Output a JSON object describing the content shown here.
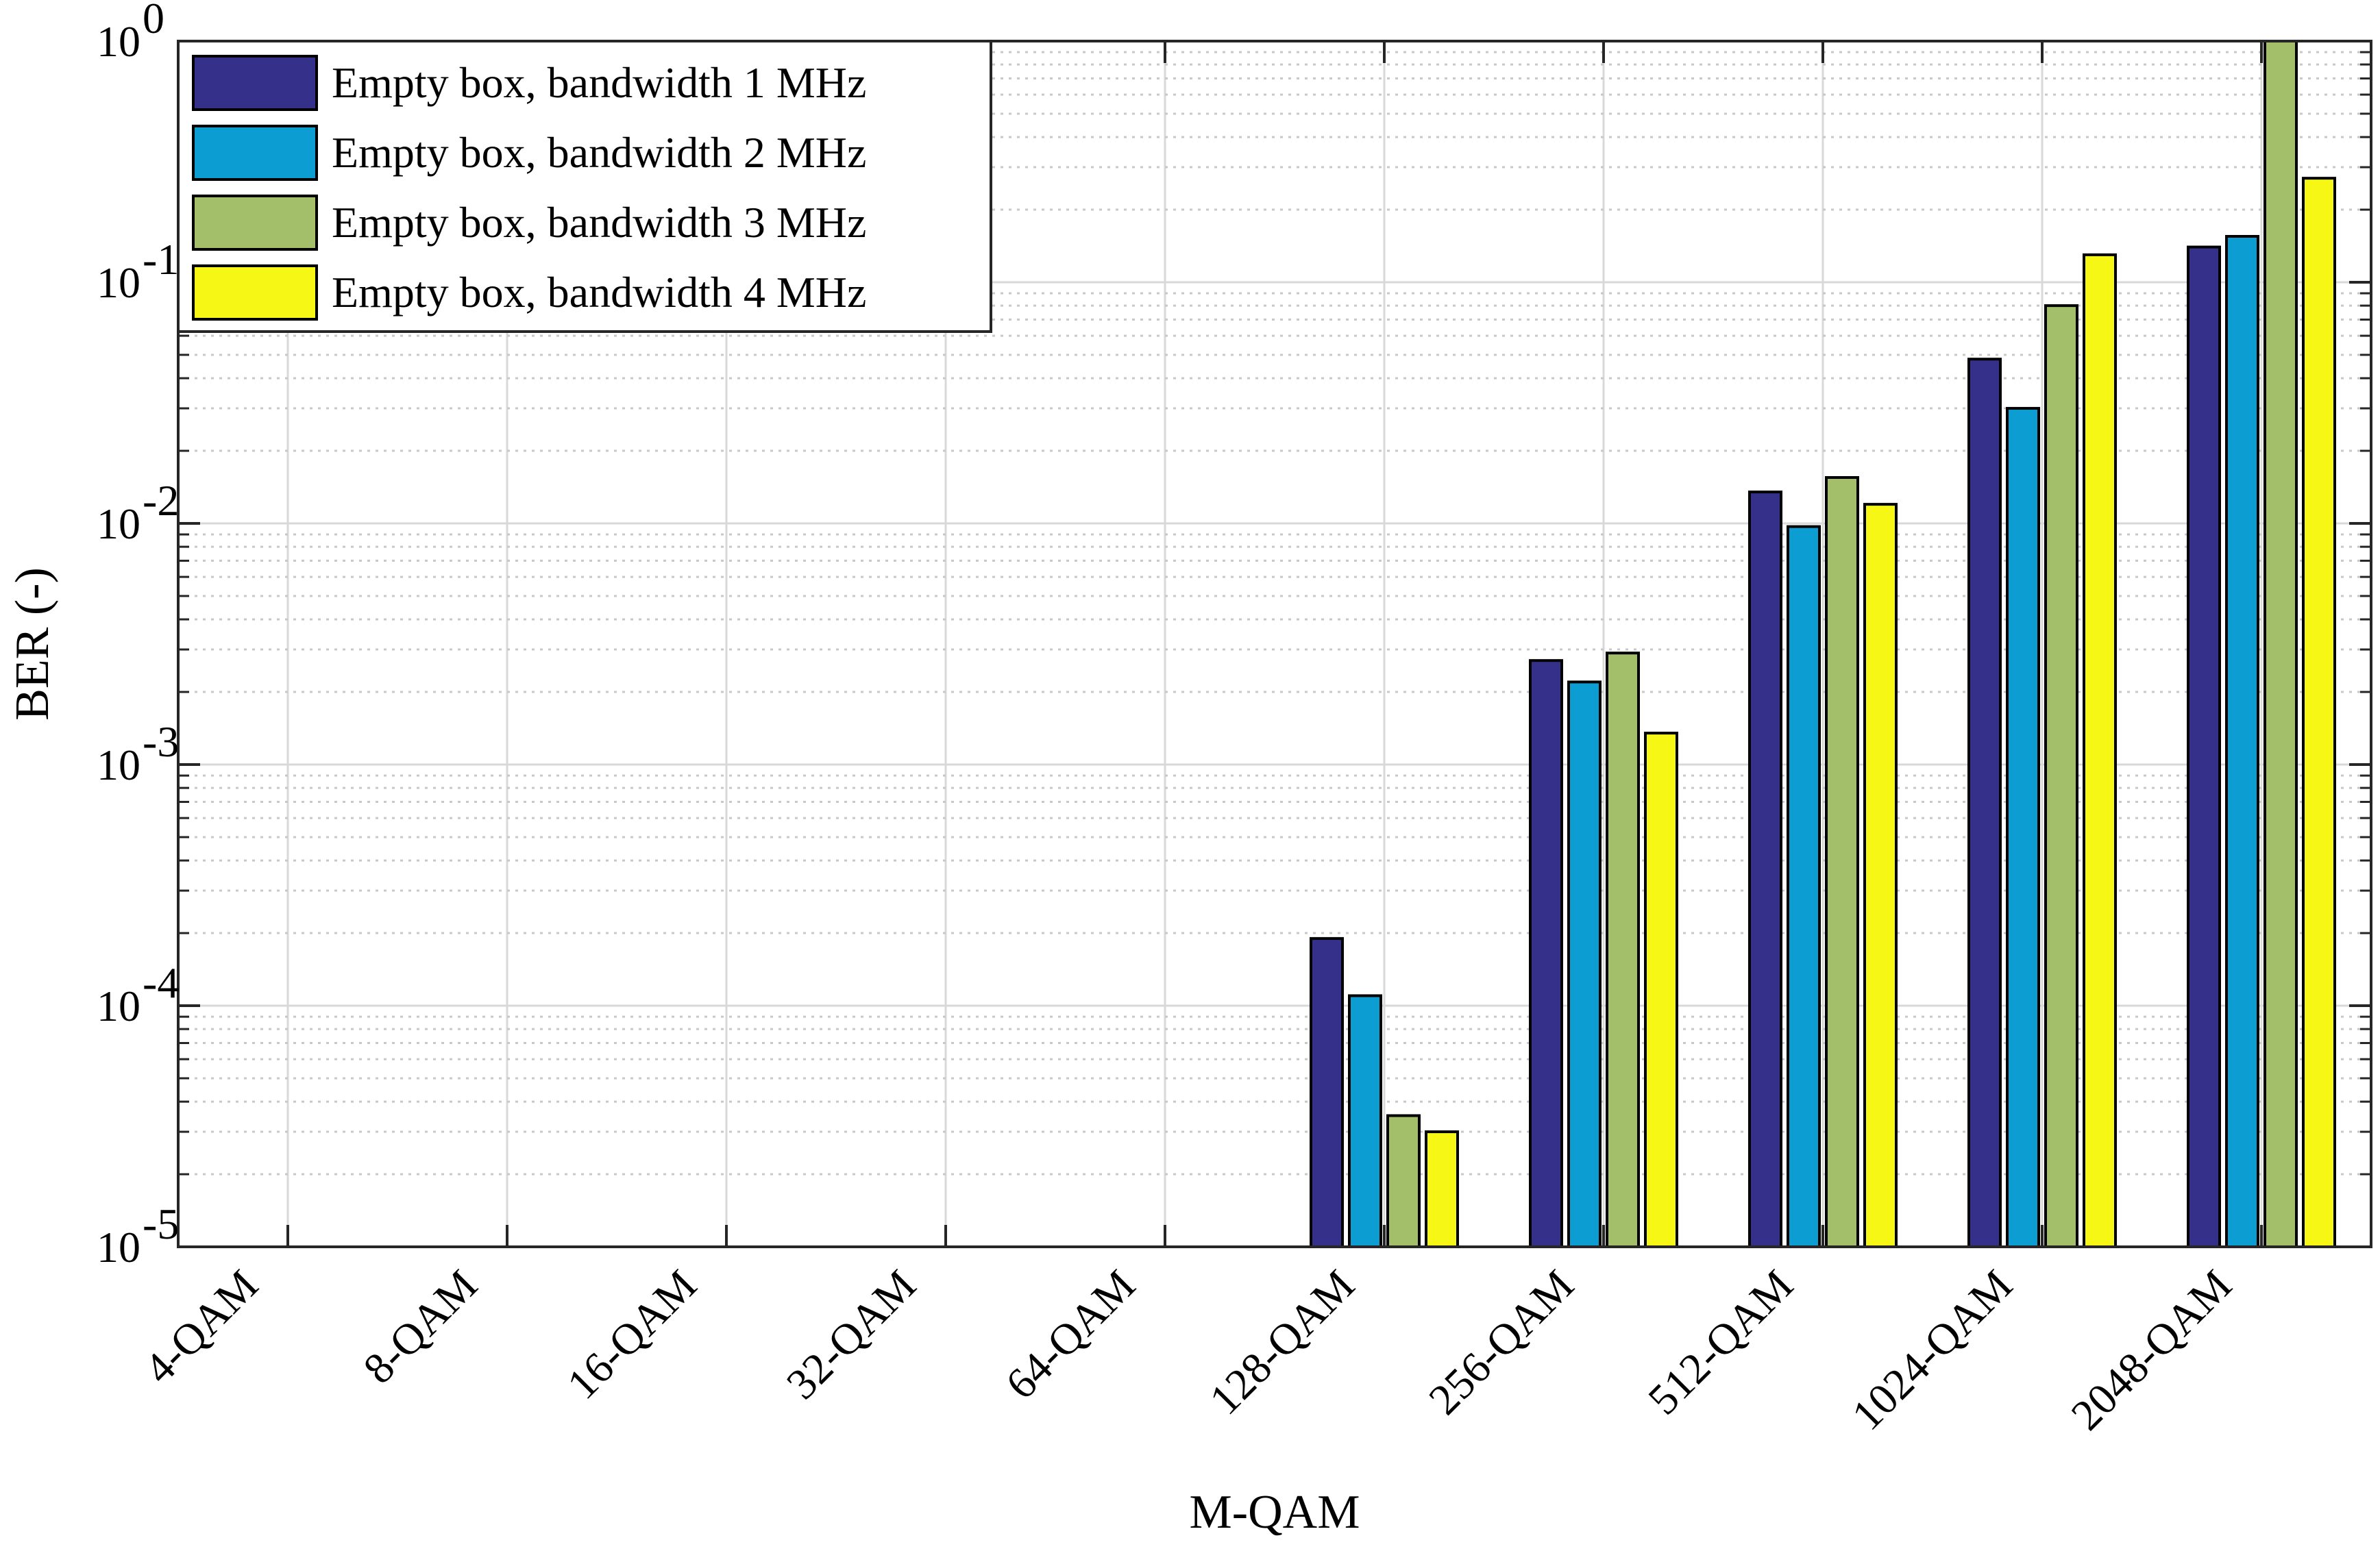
{
  "chart_data": {
    "type": "bar",
    "title": "",
    "xlabel": "M-QAM",
    "ylabel": "BER (-)",
    "yscale": "log",
    "ylim": [
      1e-05,
      1
    ],
    "grid": true,
    "legend_position": "top-left",
    "y_ticks": [
      {
        "base": "10",
        "exp": "-5",
        "value": 1e-05
      },
      {
        "base": "10",
        "exp": "-4",
        "value": 0.0001
      },
      {
        "base": "10",
        "exp": "-3",
        "value": 0.001
      },
      {
        "base": "10",
        "exp": "-2",
        "value": 0.01
      },
      {
        "base": "10",
        "exp": "-1",
        "value": 0.1
      },
      {
        "base": "10",
        "exp": "0",
        "value": 1
      }
    ],
    "categories": [
      "4-QAM",
      "8-QAM",
      "16-QAM",
      "32-QAM",
      "64-QAM",
      "128-QAM",
      "256-QAM",
      "512-QAM",
      "1024-QAM",
      "2048-QAM"
    ],
    "series": [
      {
        "name": "Empty box, bandwidth 1 MHz",
        "color": "#35308a",
        "values": [
          null,
          null,
          null,
          null,
          null,
          0.00019,
          0.0027,
          0.0135,
          0.048,
          0.14
        ]
      },
      {
        "name": "Empty box, bandwidth 2 MHz",
        "color": "#0c9ed3",
        "values": [
          null,
          null,
          null,
          null,
          null,
          0.00011,
          0.0022,
          0.0097,
          0.03,
          0.155
        ]
      },
      {
        "name": "Empty box, bandwidth 3 MHz",
        "color": "#a3bf69",
        "values": [
          null,
          null,
          null,
          null,
          null,
          3.5e-05,
          0.0029,
          0.0155,
          0.08,
          1.0
        ]
      },
      {
        "name": "Empty box, bandwidth 4 MHz",
        "color": "#f7f716",
        "values": [
          null,
          null,
          null,
          null,
          null,
          3e-05,
          0.00135,
          0.012,
          0.13,
          0.27
        ]
      }
    ]
  }
}
